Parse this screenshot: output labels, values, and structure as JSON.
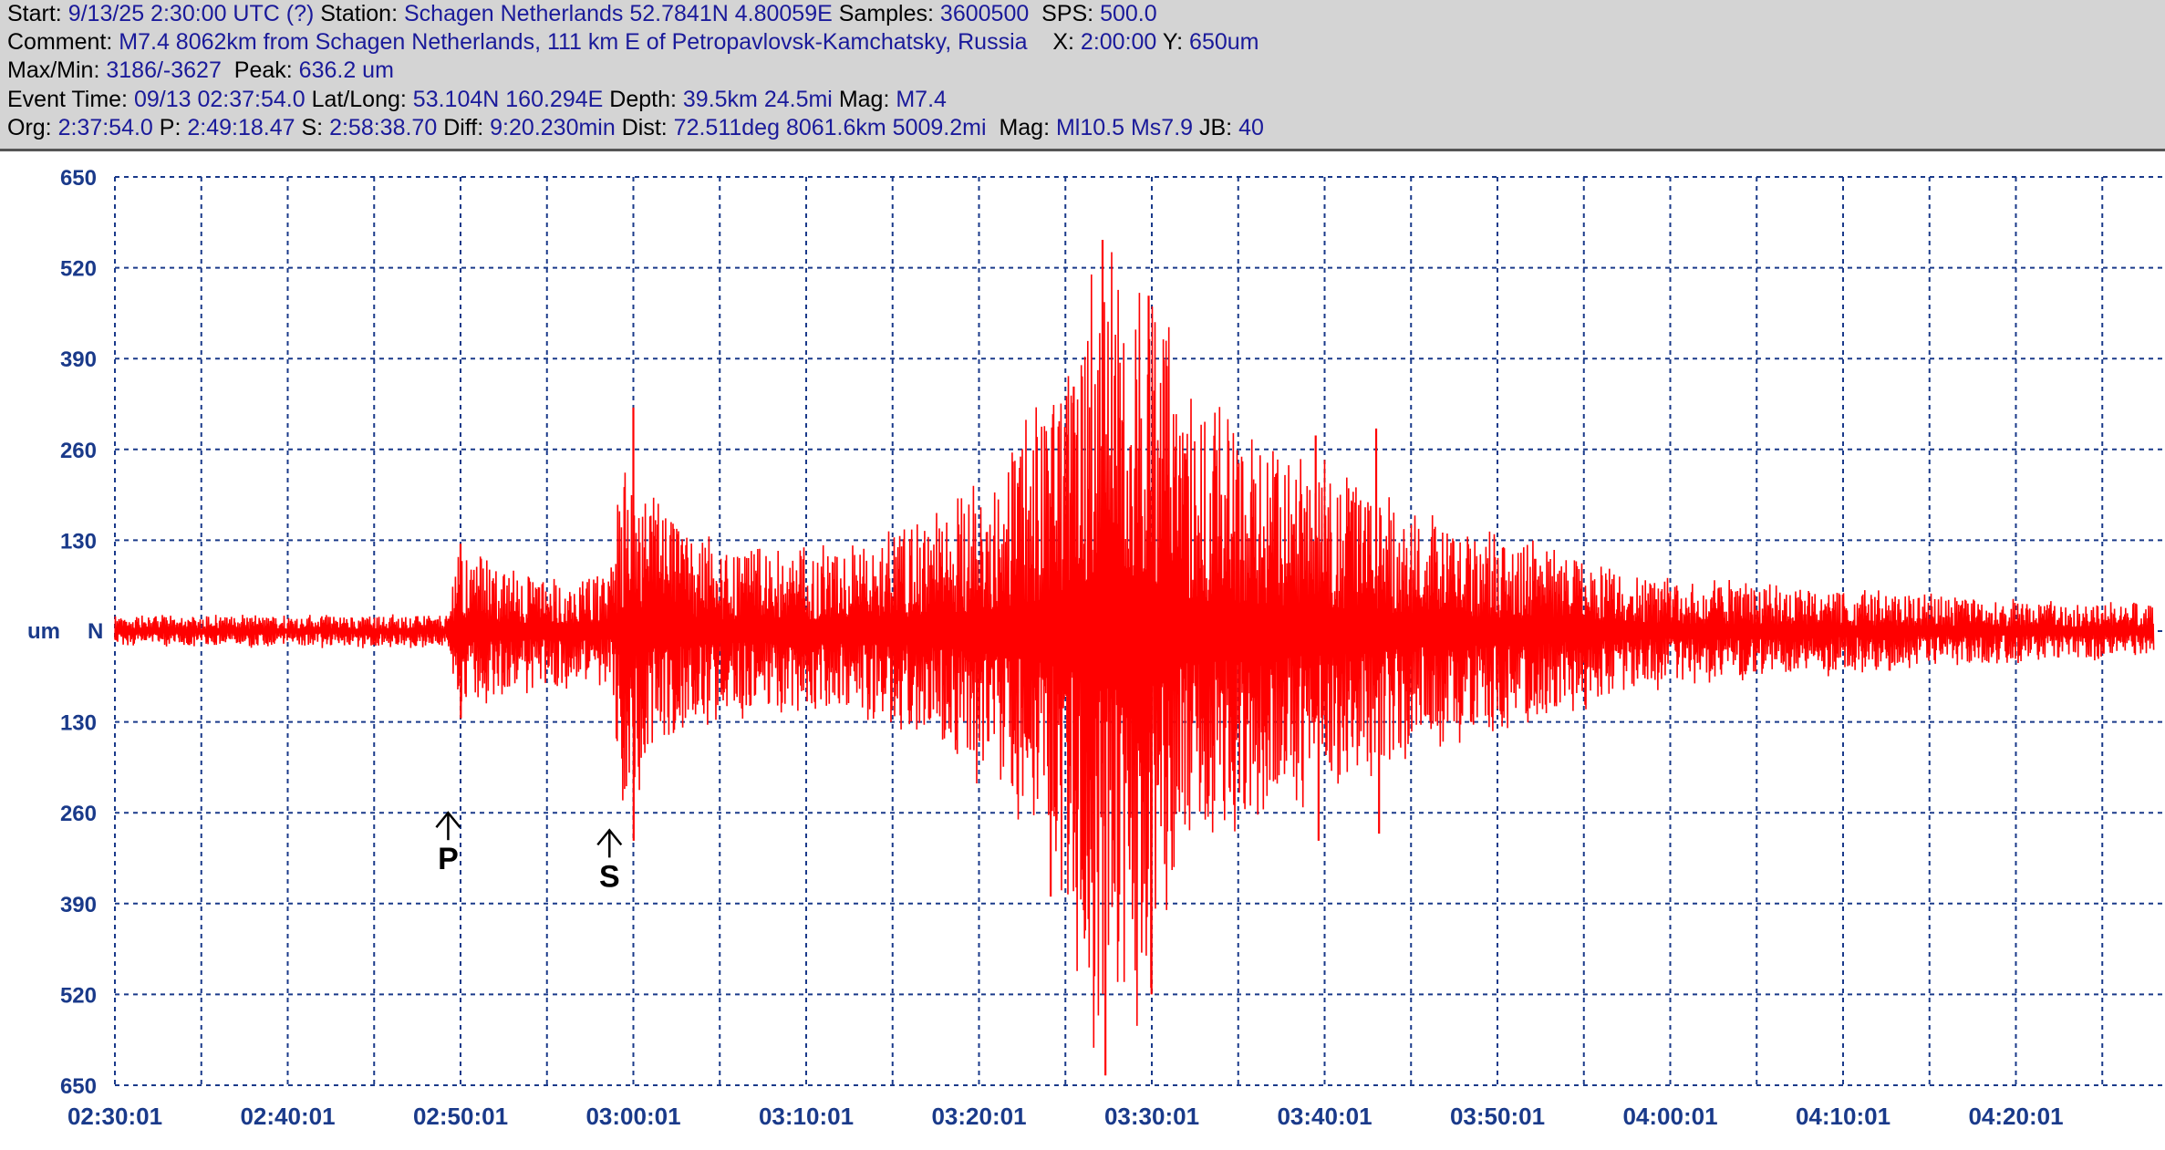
{
  "header": {
    "line1": {
      "start_label": "Start:",
      "start_value": "9/13/25  2:30:00 UTC (?)",
      "station_label": "Station:",
      "station_value": "Schagen Netherlands 52.7841N 4.80059E",
      "samples_label": "Samples:",
      "samples_value": "3600500",
      "sps_label": "SPS:",
      "sps_value": "500.0"
    },
    "line2": {
      "comment_label": "Comment:",
      "comment_value": "M7.4 8062km from Schagen Netherlands, 111 km E of Petropavlovsk-Kamchatsky, Russia",
      "x_label": "X:",
      "x_value": "2:00:00",
      "y_label": "Y:",
      "y_value": "650um"
    },
    "line3": {
      "maxmin_label": "Max/Min:",
      "maxmin_value": "3186/-3627",
      "peak_label": "Peak:",
      "peak_value": "636.2 um"
    },
    "line4": {
      "event_label": "Event Time:",
      "event_value": "09/13 02:37:54.0",
      "latlong_label": "Lat/Long:",
      "latlong_value": "53.104N 160.294E",
      "depth_label": "Depth:",
      "depth_value": "39.5km 24.5mi",
      "mag_label": "Mag:",
      "mag_value": "M7.4"
    },
    "line5": {
      "org_label": "Org:",
      "org_value": "2:37:54.0",
      "p_label": "P:",
      "p_value": "2:49:18.47",
      "s_label": "S:",
      "s_value": "2:58:38.70",
      "diff_label": "Diff:",
      "diff_value": "9:20.230min",
      "dist_label": "Dist:",
      "dist_value": "72.511deg 8061.6km 5009.2mi",
      "mag_label": "Mag:",
      "mag_value": "Ml10.5 Ms7.9",
      "jb_label": "JB:",
      "jb_value": "40"
    }
  },
  "chart_data": {
    "type": "line",
    "ylabel": "um",
    "channel": "N",
    "ylim": [
      -650,
      650
    ],
    "xlim": [
      "02:30:01",
      "04:28:00"
    ],
    "grid": true,
    "y_ticks": [
      650,
      520,
      390,
      260,
      130,
      -130,
      -260,
      -390,
      -520,
      -650
    ],
    "y_tick_labels": [
      "650",
      "520",
      "390",
      "260",
      "130",
      "130",
      "260",
      "390",
      "520",
      "650"
    ],
    "x_ticks": [
      "02:30:01",
      "02:40:01",
      "02:50:01",
      "03:00:01",
      "03:10:01",
      "03:20:01",
      "03:30:01",
      "03:40:01",
      "03:50:01",
      "04:00:01",
      "04:10:01",
      "04:20:01"
    ],
    "series": [
      {
        "color": "#ff0000",
        "envelope": [
          {
            "t": "02:30:01",
            "amp": 20
          },
          {
            "t": "02:49:20",
            "amp": 22
          },
          {
            "t": "02:49:40",
            "amp": 110
          },
          {
            "t": "02:53:00",
            "amp": 80
          },
          {
            "t": "02:58:40",
            "amp": 70
          },
          {
            "t": "02:59:30",
            "amp": 240
          },
          {
            "t": "03:01:00",
            "amp": 170
          },
          {
            "t": "03:05:00",
            "amp": 110
          },
          {
            "t": "03:12:00",
            "amp": 110
          },
          {
            "t": "03:17:00",
            "amp": 140
          },
          {
            "t": "03:21:00",
            "amp": 210
          },
          {
            "t": "03:25:00",
            "amp": 350
          },
          {
            "t": "03:27:00",
            "amp": 560
          },
          {
            "t": "03:30:00",
            "amp": 480
          },
          {
            "t": "03:32:00",
            "amp": 300
          },
          {
            "t": "03:36:00",
            "amp": 260
          },
          {
            "t": "03:40:00",
            "amp": 220
          },
          {
            "t": "03:46:00",
            "amp": 150
          },
          {
            "t": "03:55:00",
            "amp": 100
          },
          {
            "t": "04:00:00",
            "amp": 70
          },
          {
            "t": "04:10:00",
            "amp": 55
          },
          {
            "t": "04:20:00",
            "amp": 40
          },
          {
            "t": "04:28:00",
            "amp": 35
          }
        ],
        "peaks": [
          {
            "t": "02:50:01",
            "value": 125
          },
          {
            "t": "02:50:02",
            "value": -125
          },
          {
            "t": "03:00:01",
            "value": 320
          },
          {
            "t": "03:00:02",
            "value": -300
          },
          {
            "t": "03:24:10",
            "value": -380
          },
          {
            "t": "03:25:30",
            "value": 350
          },
          {
            "t": "03:27:10",
            "value": 560
          },
          {
            "t": "03:27:20",
            "value": -636
          },
          {
            "t": "03:29:50",
            "value": 480
          },
          {
            "t": "03:30:00",
            "value": -520
          },
          {
            "t": "03:39:30",
            "value": 280
          },
          {
            "t": "03:39:40",
            "value": -300
          },
          {
            "t": "03:43:00",
            "value": 290
          },
          {
            "t": "03:43:10",
            "value": -290
          }
        ]
      }
    ],
    "annotations": [
      {
        "text": "P",
        "t": "02:49:18",
        "y": -260
      },
      {
        "text": "S",
        "t": "02:58:38",
        "y": -285
      }
    ]
  }
}
